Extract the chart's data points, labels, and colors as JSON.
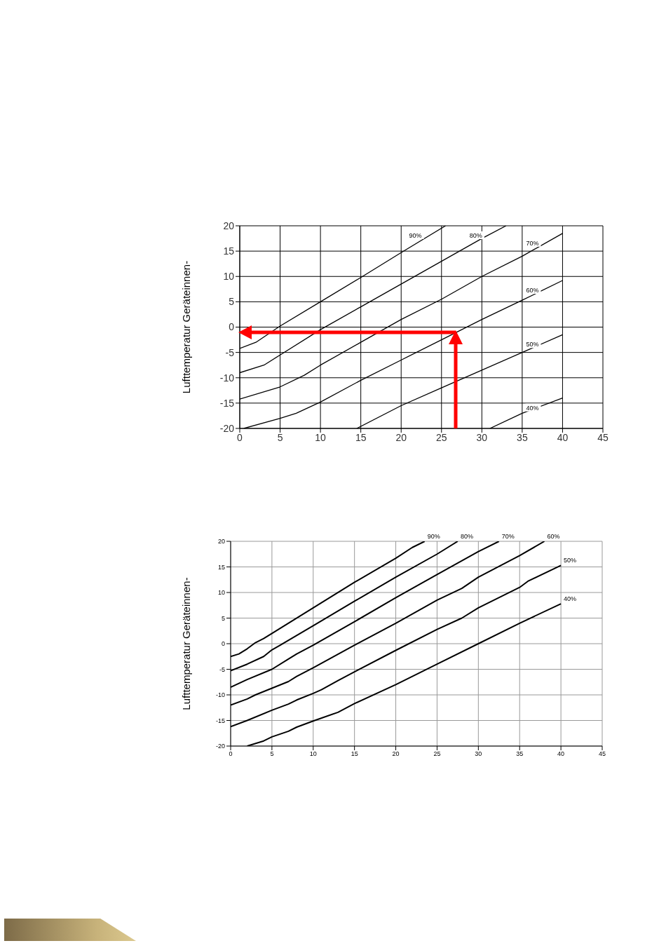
{
  "chart_data": [
    {
      "type": "line",
      "ylabel": "Lufttemperatur Geräteinnen-",
      "xlim": [
        0,
        45
      ],
      "xticks": [
        0,
        5,
        10,
        15,
        20,
        25,
        30,
        35,
        40,
        45
      ],
      "ylim": [
        -20,
        20
      ],
      "yticks": [
        -20,
        -15,
        -10,
        -5,
        0,
        5,
        10,
        15,
        20
      ],
      "grid": true,
      "line_style": "solid",
      "series": [
        {
          "name": "90%",
          "color": "#000000",
          "x": [
            0,
            2,
            5,
            10,
            15,
            20,
            25.5
          ],
          "values": [
            -4.2,
            -3,
            0.2,
            5,
            9.8,
            14.7,
            20
          ]
        },
        {
          "name": "80%",
          "color": "#000000",
          "x": [
            0,
            3,
            5,
            10,
            15,
            20,
            25,
            30,
            33
          ],
          "values": [
            -9,
            -7.5,
            -5.5,
            -0.5,
            4,
            8.5,
            13,
            17.5,
            20
          ]
        },
        {
          "name": "70%",
          "color": "#000000",
          "x": [
            0,
            5,
            8,
            10,
            15,
            20,
            25,
            30,
            35,
            40
          ],
          "values": [
            -14.2,
            -11.8,
            -9.5,
            -7.5,
            -3,
            1.5,
            5.5,
            10,
            14,
            18.5
          ]
        },
        {
          "name": "60%",
          "color": "#000000",
          "x": [
            0.5,
            5,
            7,
            10,
            15,
            20,
            25,
            30,
            35,
            40
          ],
          "values": [
            -20,
            -18,
            -17,
            -14.8,
            -10.5,
            -6.5,
            -2.5,
            1.5,
            5.3,
            9.2
          ]
        },
        {
          "name": "50%",
          "color": "#000000",
          "x": [
            14.5,
            20,
            25,
            30,
            35,
            40
          ],
          "values": [
            -20,
            -15.5,
            -12,
            -8.5,
            -5,
            -1.5
          ]
        },
        {
          "name": "40%",
          "color": "#000000",
          "x": [
            31,
            35,
            40
          ],
          "values": [
            -20,
            -17,
            -14
          ]
        }
      ]
    },
    {
      "type": "line",
      "ylabel": "Lufttemperatur Geräteinnen-",
      "xlim": [
        0,
        45
      ],
      "xticks": [
        0,
        5,
        10,
        15,
        20,
        25,
        30,
        35,
        40,
        45
      ],
      "ylim": [
        -20,
        20
      ],
      "yticks": [
        -20,
        -15,
        -10,
        -5,
        0,
        5,
        10,
        15,
        20
      ],
      "grid": true,
      "line_style": "solid",
      "series": [
        {
          "name": "90%",
          "color": "#000000",
          "x": [
            0,
            1,
            2,
            3,
            4,
            5,
            10,
            15,
            20,
            22,
            23.5
          ],
          "values": [
            -2.5,
            -2,
            -1,
            0.2,
            1,
            2,
            7,
            12,
            16.7,
            18.8,
            20
          ]
        },
        {
          "name": "80%",
          "color": "#000000",
          "x": [
            0,
            2,
            4,
            5,
            6,
            10,
            15,
            20,
            25,
            27.5
          ],
          "values": [
            -5.3,
            -4,
            -2.5,
            -1.2,
            -0.3,
            3.5,
            8.3,
            13,
            17.5,
            20
          ]
        },
        {
          "name": "70%",
          "color": "#000000",
          "x": [
            0,
            2,
            5,
            7,
            8,
            10,
            15,
            20,
            25,
            30,
            32.5
          ],
          "values": [
            -8.5,
            -7,
            -5,
            -3,
            -2,
            -0.3,
            4.3,
            9,
            13.5,
            18,
            20
          ]
        },
        {
          "name": "60%",
          "color": "#000000",
          "x": [
            0,
            2,
            3,
            5,
            7,
            8,
            10,
            15,
            20,
            25,
            28,
            30,
            35,
            38
          ],
          "values": [
            -12,
            -10.8,
            -10,
            -8.7,
            -7.4,
            -6.4,
            -4.7,
            -0.3,
            4,
            8.5,
            10.8,
            13,
            17.2,
            20
          ]
        },
        {
          "name": "50%",
          "color": "#000000",
          "x": [
            0,
            2,
            5,
            7,
            8,
            10,
            11,
            13,
            15,
            20,
            25,
            28,
            30,
            35,
            36,
            40
          ],
          "values": [
            -16.2,
            -15,
            -13,
            -11.8,
            -11,
            -9.7,
            -9,
            -7.2,
            -5.5,
            -1.3,
            2.8,
            5,
            7,
            11,
            12.2,
            15.3
          ]
        },
        {
          "name": "40%",
          "color": "#000000",
          "x": [
            2,
            4,
            5,
            7,
            8,
            10,
            13,
            15,
            20,
            25,
            30,
            35,
            40
          ],
          "values": [
            -20,
            -19,
            -18.2,
            -17.1,
            -16.3,
            -15.1,
            -13.4,
            -11.7,
            -8,
            -4,
            0,
            4,
            7.8
          ]
        }
      ]
    }
  ]
}
